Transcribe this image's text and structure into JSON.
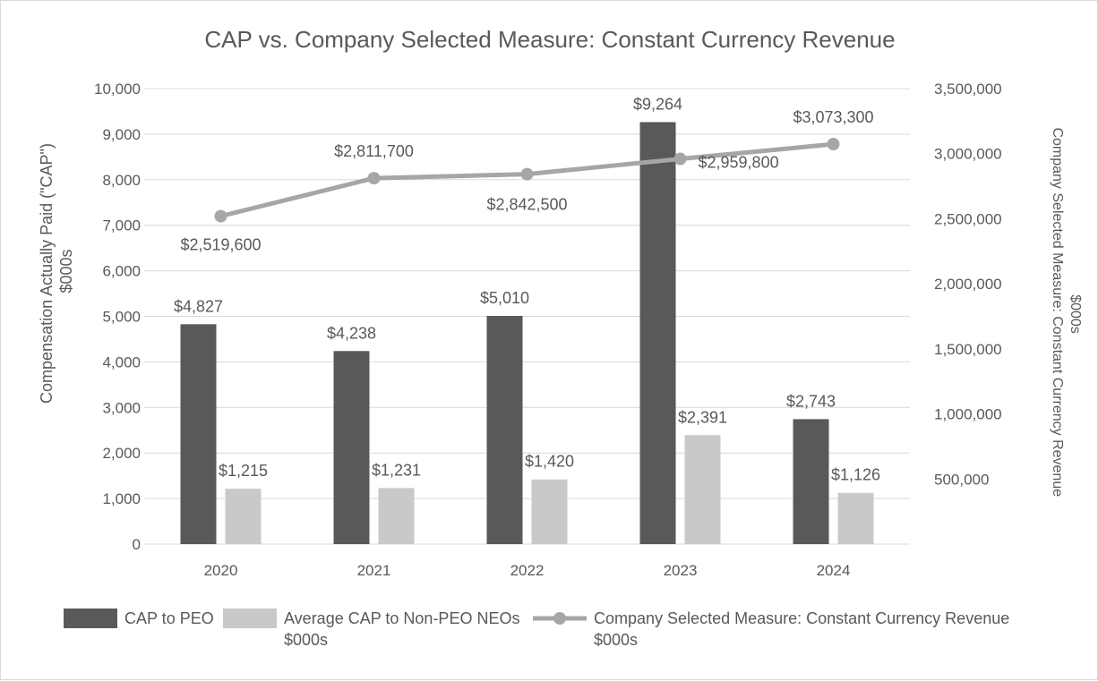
{
  "chart_data": {
    "type": "bar",
    "title": "CAP vs. Company Selected Measure: Constant Currency Revenue",
    "categories": [
      "2020",
      "2021",
      "2022",
      "2023",
      "2024"
    ],
    "ylabel_left_line1": "Compensation Actually Paid (\"CAP\")",
    "ylabel_left_line2": "$000s",
    "ylabel_right_line1": "Company Selected Measure: Constant Currency Revenue",
    "ylabel_right_line2": "$000s",
    "ylim_left": [
      0,
      10000
    ],
    "ylim_right": [
      0,
      3500000
    ],
    "left_ticks": [
      "0",
      "1,000",
      "2,000",
      "3,000",
      "4,000",
      "5,000",
      "6,000",
      "7,000",
      "8,000",
      "9,000",
      "10,000"
    ],
    "right_ticks": [
      "500,000",
      "1,000,000",
      "1,500,000",
      "2,000,000",
      "2,500,000",
      "3,000,000",
      "3,500,000"
    ],
    "right_tick_values": [
      500000,
      1000000,
      1500000,
      2000000,
      2500000,
      3000000,
      3500000
    ],
    "series": [
      {
        "name": "CAP to PEO",
        "kind": "bar",
        "axis": "left",
        "color": "#595959",
        "values": [
          4827,
          4238,
          5010,
          9264,
          2743
        ],
        "labels": [
          "$4,827",
          "$4,238",
          "$5,010",
          "$9,264",
          "$2,743"
        ]
      },
      {
        "name": "Average CAP to Non-PEO NEOs $000s",
        "kind": "bar",
        "axis": "left",
        "color": "#c9c9c9",
        "values": [
          1215,
          1231,
          1420,
          2391,
          1126
        ],
        "labels": [
          "$1,215",
          "$1,231",
          "$1,420",
          "$2,391",
          "$1,126"
        ]
      },
      {
        "name": "Company Selected Measure: Constant Currency Revenue $000s",
        "kind": "line",
        "axis": "right",
        "color": "#a6a6a6",
        "values": [
          2519600,
          2811700,
          2842500,
          2959800,
          3073300
        ],
        "labels": [
          "$2,519,600",
          "$2,811,700",
          "$2,842,500",
          "$2,959,800",
          "$3,073,300"
        ]
      }
    ],
    "legend": {
      "position": "bottom",
      "items": [
        {
          "line1": "CAP to PEO",
          "line2": ""
        },
        {
          "line1": "Average CAP to Non-PEO NEOs",
          "line2": "$000s"
        },
        {
          "line1": "Company Selected Measure: Constant Currency Revenue",
          "line2": "$000s"
        }
      ]
    },
    "grid": true
  }
}
